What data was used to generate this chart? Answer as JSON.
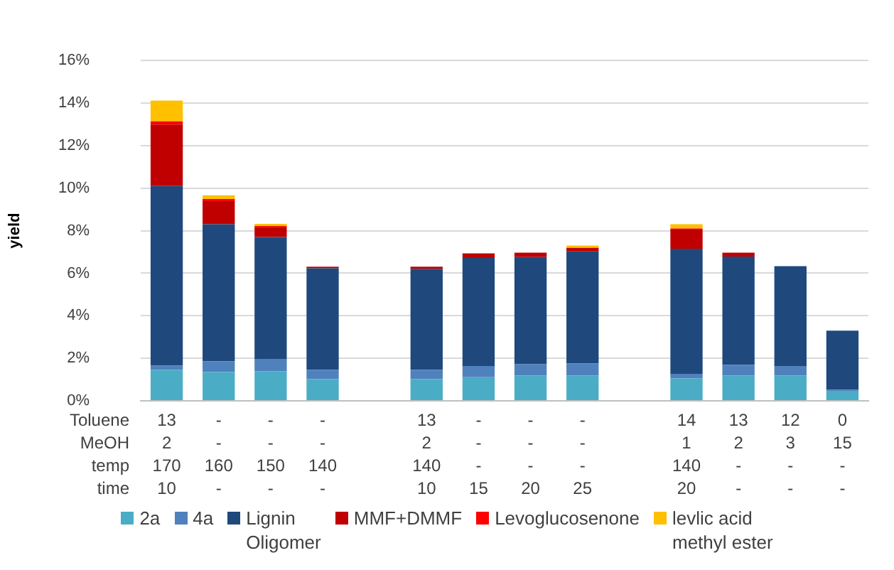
{
  "chart_data": {
    "type": "bar",
    "stacked": true,
    "ylabel": "yield",
    "grid": "y",
    "legend": "bottom",
    "categories": [
      "13\n2\n170\n10",
      "-\n-\n160\n-",
      "-\n-\n150\n-",
      "-\n-\n140\n-",
      null,
      "13\n2\n140\n10",
      "-\n-\n-\n15",
      "-\n-\n-\n20",
      "-\n-\n-\n25",
      null,
      "14\n1\n140\n20",
      "13\n2\n-\n-",
      "12\n3\n-\n-",
      "0\n15\n-\n-"
    ],
    "annotations": [
      "Toluene",
      "MeOH",
      "temp",
      "time"
    ],
    "ylim": [
      0,
      16
    ],
    "yticks": [
      {
        "value": 0,
        "label": "0%"
      },
      {
        "value": 2,
        "label": "2%"
      },
      {
        "value": 4,
        "label": "4%"
      },
      {
        "value": 6,
        "label": "6%"
      },
      {
        "value": 8,
        "label": "8%"
      },
      {
        "value": 10,
        "label": "10%"
      },
      {
        "value": 12,
        "label": "12%"
      },
      {
        "value": 14,
        "label": "14%"
      },
      {
        "value": 16,
        "label": "16%"
      }
    ],
    "series": [
      {
        "name": "2a",
        "color": "#4bacc6",
        "values": [
          1.45,
          1.35,
          1.39,
          1.02,
          null,
          1.02,
          1.11,
          1.19,
          1.19,
          null,
          1.05,
          1.19,
          1.19,
          0.47
        ]
      },
      {
        "name": "4a",
        "color": "#4f81bd",
        "values": [
          0.2,
          0.51,
          0.58,
          0.43,
          null,
          0.43,
          0.53,
          0.53,
          0.57,
          null,
          0.22,
          0.51,
          0.45,
          0.06
        ]
      },
      {
        "name": "Lignin\nOligomer",
        "color": "#1f497d",
        "values": [
          8.45,
          6.44,
          5.73,
          4.78,
          null,
          4.76,
          5.08,
          5.04,
          5.27,
          null,
          5.88,
          5.08,
          4.69,
          2.77
        ]
      },
      {
        "name": "MMF+DMMF",
        "color": "#c00000",
        "values": [
          2.89,
          1.09,
          0.48,
          0.08,
          null,
          0.1,
          0.21,
          0.21,
          0.16,
          null,
          0.9,
          0.19,
          0,
          0
        ]
      },
      {
        "name": "Levoglucosenone",
        "color": "#ff0000",
        "values": [
          0.15,
          0.1,
          0.04,
          0,
          null,
          0,
          0,
          0,
          0,
          null,
          0.05,
          0,
          0,
          0
        ]
      },
      {
        "name": "levlic acid\nmethyl ester",
        "color": "#ffc000",
        "values": [
          0.98,
          0.18,
          0.1,
          0,
          null,
          0,
          0,
          0,
          0.11,
          null,
          0.2,
          0,
          0,
          0
        ]
      }
    ]
  }
}
